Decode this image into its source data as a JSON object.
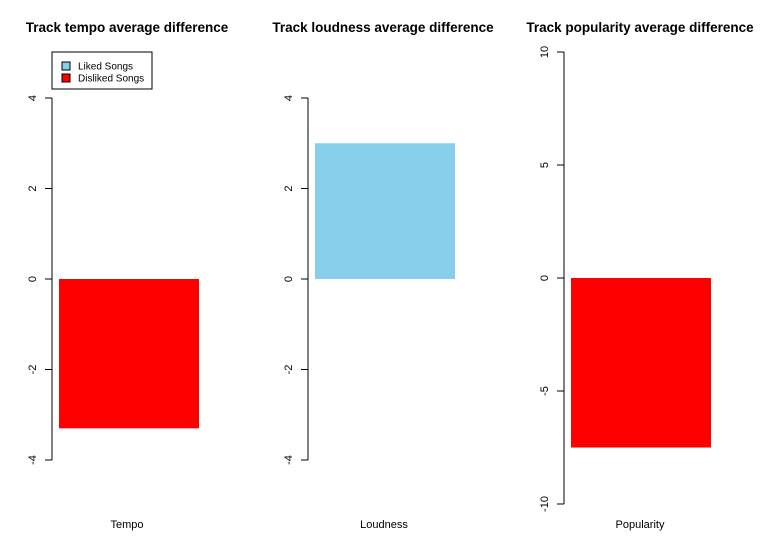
{
  "chart_data": [
    {
      "type": "bar",
      "title": "Track tempo average difference",
      "categories": [
        "Tempo"
      ],
      "values": [
        -3.3
      ],
      "xlabel": "Tempo",
      "ylabel": "",
      "ylim": [
        -4,
        4
      ],
      "yticks": [
        "-4",
        "-2",
        "0",
        "2",
        "4"
      ],
      "legend": {
        "placement": "top-left",
        "entries": [
          {
            "label": "Liked Songs",
            "color": "#87CEEB"
          },
          {
            "label": "Disliked Songs",
            "color": "#FF0000"
          }
        ]
      }
    },
    {
      "type": "bar",
      "title": "Track loudness average difference",
      "categories": [
        "Loudness"
      ],
      "values": [
        3.0
      ],
      "xlabel": "Loudness",
      "ylabel": "",
      "ylim": [
        -4,
        4
      ],
      "yticks": [
        "-4",
        "-2",
        "0",
        "2",
        "4"
      ]
    },
    {
      "type": "bar",
      "title": "Track popularity average difference",
      "categories": [
        "Popularity"
      ],
      "values": [
        -7.5
      ],
      "xlabel": "Popularity",
      "ylabel": "",
      "ylim": [
        -10,
        10
      ],
      "yticks": [
        "-10",
        "-5",
        "0",
        "5",
        "10"
      ]
    }
  ],
  "colors": {
    "positive": "#87CEEB",
    "negative": "#FF0000"
  }
}
